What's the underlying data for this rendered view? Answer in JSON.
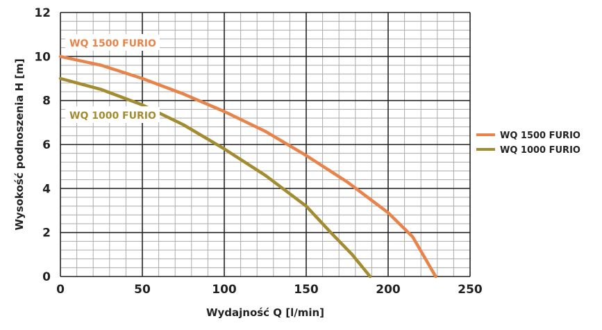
{
  "chart_data": {
    "type": "line",
    "title": "",
    "xlabel": "Wydajność Q [l/min]",
    "ylabel": "Wysokość podnoszenia H [m]",
    "xlim": [
      0,
      250
    ],
    "ylim": [
      0,
      12
    ],
    "xticks": [
      0,
      50,
      100,
      150,
      200,
      250
    ],
    "yticks": [
      0,
      2,
      4,
      6,
      8,
      10,
      12
    ],
    "x_minor_step": 10,
    "y_minor_step": 0.4,
    "grid": true,
    "legend_position": "right",
    "series": [
      {
        "name": "WQ 1500 FURIO",
        "color": "#E8834A",
        "annotation": "WQ 1500 FURIO",
        "x": [
          0,
          25,
          50,
          75,
          100,
          125,
          150,
          175,
          200,
          215,
          229
        ],
        "y": [
          10,
          9.6,
          9.0,
          8.3,
          7.5,
          6.6,
          5.5,
          4.3,
          2.9,
          1.8,
          0
        ]
      },
      {
        "name": "WQ 1000 FURIO",
        "color": "#A38C2F",
        "annotation": "WQ 1000 FURIO",
        "x": [
          0,
          25,
          50,
          75,
          100,
          125,
          150,
          165,
          178,
          189
        ],
        "y": [
          9,
          8.5,
          7.8,
          6.9,
          5.8,
          4.6,
          3.2,
          2.0,
          1.0,
          0
        ]
      }
    ]
  }
}
